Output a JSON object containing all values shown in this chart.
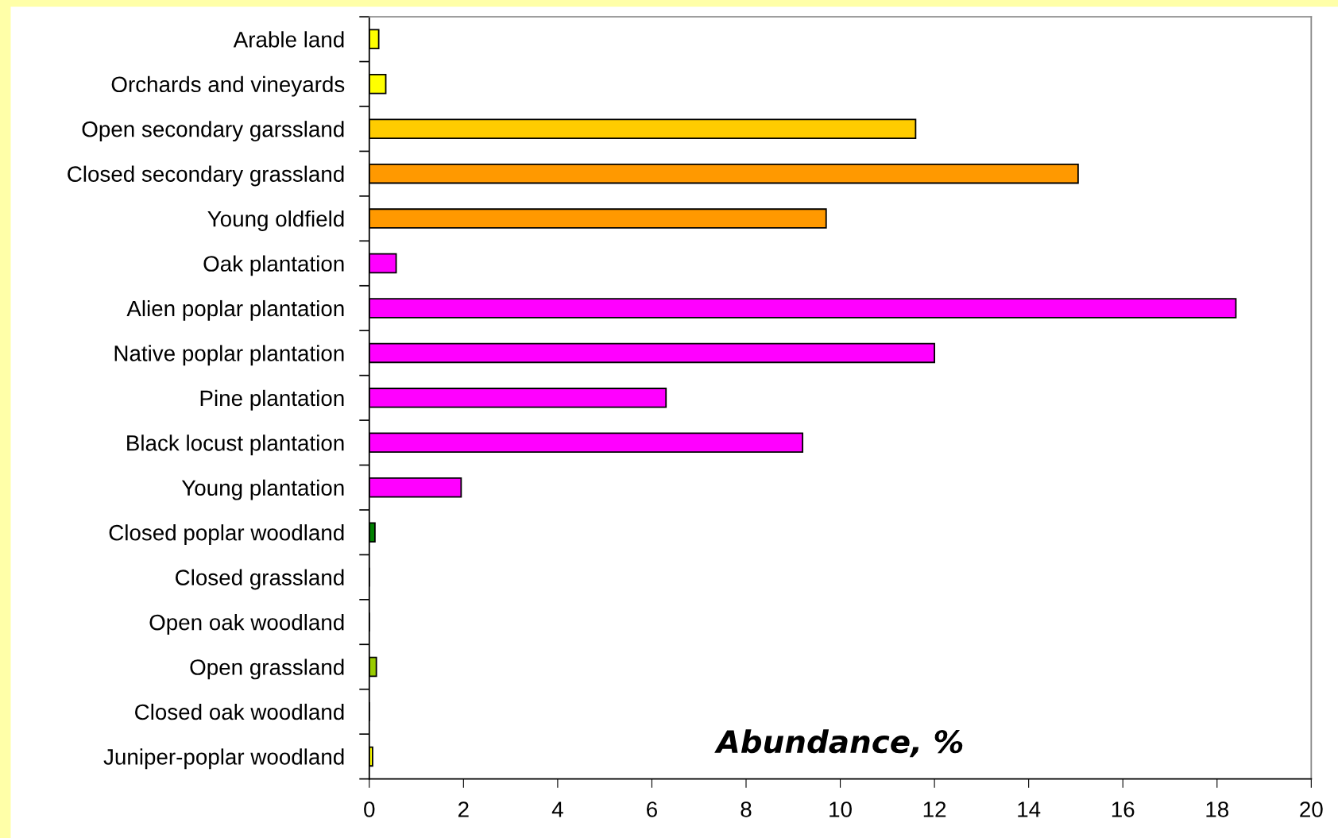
{
  "chart_data": {
    "type": "bar",
    "orientation": "horizontal",
    "xlabel": "Abundance, %",
    "categories": [
      "Arable land",
      "Orchards and vineyards",
      "Open secondary garssland",
      "Closed secondary grassland",
      "Young oldfield",
      "Oak plantation",
      "Alien poplar plantation",
      "Native poplar plantation",
      "Pine plantation",
      "Black locust plantation",
      "Young plantation",
      "Closed poplar woodland",
      "Closed grassland",
      "Open oak woodland",
      "Open grassland",
      "Closed oak woodland",
      "Juniper-poplar woodland"
    ],
    "values": [
      0.2,
      0.35,
      11.6,
      15.05,
      9.7,
      0.57,
      18.4,
      12.0,
      6.3,
      9.2,
      1.95,
      0.12,
      0,
      0,
      0.15,
      0,
      0.07
    ],
    "colors": [
      "#ffff00",
      "#ffff00",
      "#ffcc00",
      "#ff9900",
      "#ff9900",
      "#ff00ff",
      "#ff00ff",
      "#ff00ff",
      "#ff00ff",
      "#ff00ff",
      "#ff00ff",
      "#008000",
      "#008000",
      "#99cc00",
      "#99cc00",
      "#ffff00",
      "#ffff00"
    ],
    "xlim": [
      0,
      20
    ],
    "xticks": [
      0,
      2,
      4,
      6,
      8,
      10,
      12,
      14,
      16,
      18,
      20
    ],
    "grid": false,
    "legend": false
  }
}
